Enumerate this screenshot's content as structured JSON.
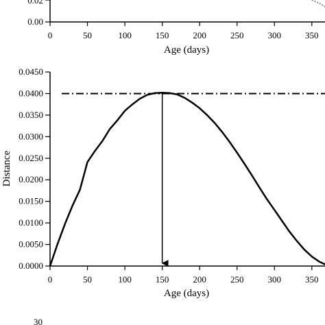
{
  "chart_data": [
    {
      "type": "line",
      "partial": true,
      "xlabel": "Age (days)",
      "ylabel": "",
      "xlim": [
        0,
        370
      ],
      "x_ticks": [
        "0",
        "50",
        "100",
        "150",
        "200",
        "250",
        "300",
        "350"
      ],
      "y_ticks_visible": [
        "0.00",
        "0.02"
      ],
      "series": [
        {
          "style": "dotted-gray",
          "x": [
            330,
            340,
            350,
            360,
            370
          ],
          "y": [
            0.026,
            0.023,
            0.02,
            0.017,
            0.013
          ]
        }
      ]
    },
    {
      "type": "line",
      "xlabel": "Age (days)",
      "ylabel": "Distance",
      "xlim": [
        0,
        370
      ],
      "ylim": [
        0,
        0.045
      ],
      "x_ticks": [
        "0",
        "50",
        "100",
        "150",
        "200",
        "250",
        "300",
        "350"
      ],
      "y_ticks": [
        "0.0000",
        "0.0050",
        "0.0100",
        "0.0150",
        "0.0200",
        "0.0250",
        "0.0300",
        "0.0350",
        "0.0400",
        "0.0450"
      ],
      "series": [
        {
          "style": "solid-black",
          "x": [
            0,
            10,
            20,
            30,
            40,
            50,
            60,
            70,
            80,
            90,
            100,
            110,
            120,
            130,
            140,
            150,
            160,
            170,
            180,
            190,
            200,
            210,
            220,
            230,
            240,
            250,
            260,
            270,
            280,
            290,
            300,
            310,
            320,
            330,
            340,
            350,
            360,
            370
          ],
          "y": [
            0.0,
            0.0051,
            0.0098,
            0.014,
            0.0177,
            0.0241,
            0.0267,
            0.029,
            0.0318,
            0.0338,
            0.036,
            0.0375,
            0.0388,
            0.0397,
            0.0401,
            0.0402,
            0.0401,
            0.0398,
            0.039,
            0.0379,
            0.0366,
            0.035,
            0.0332,
            0.0311,
            0.0288,
            0.0263,
            0.0237,
            0.021,
            0.0182,
            0.0155,
            0.013,
            0.0105,
            0.008,
            0.0058,
            0.0038,
            0.0022,
            0.001,
            0.0002
          ]
        }
      ],
      "annotations": {
        "threshold_line": {
          "y": 0.04,
          "style": "dash-dot"
        },
        "arrow": {
          "x": 150,
          "from_y": 0.04,
          "to_y": 0
        }
      }
    }
  ],
  "bottom_fragment_text": "30"
}
